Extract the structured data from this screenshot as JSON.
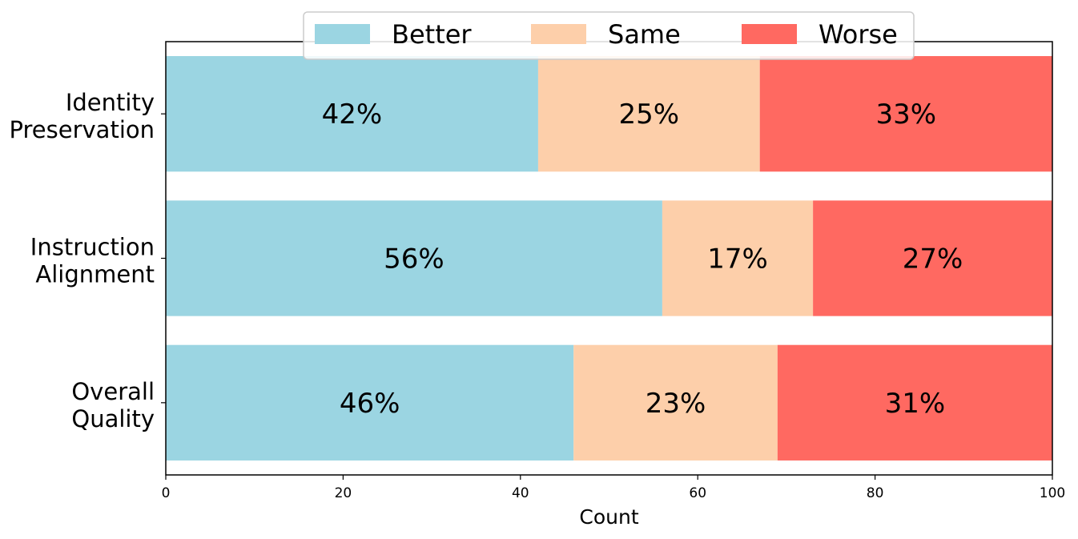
{
  "chart_data": {
    "type": "bar",
    "orientation": "horizontal",
    "stacked": true,
    "categories": [
      "Identity Preservation",
      "Instruction Alignment",
      "Overall Quality"
    ],
    "category_label_lines": [
      [
        "Identity",
        "Preservation"
      ],
      [
        "Instruction",
        "Alignment"
      ],
      [
        "Overall",
        "Quality"
      ]
    ],
    "series": [
      {
        "name": "Better",
        "color": "#9bd5e2",
        "values": [
          42,
          56,
          46
        ],
        "labels": [
          "42%",
          "56%",
          "46%"
        ]
      },
      {
        "name": "Same",
        "color": "#fdcfaa",
        "values": [
          25,
          17,
          23
        ],
        "labels": [
          "25%",
          "17%",
          "23%"
        ]
      },
      {
        "name": "Worse",
        "color": "#ff6961",
        "values": [
          33,
          27,
          31
        ],
        "labels": [
          "33%",
          "27%",
          "31%"
        ]
      }
    ],
    "title": "",
    "xlabel": "Count",
    "ylabel": "",
    "xlim": [
      0,
      100
    ],
    "xticks": [
      0,
      20,
      40,
      60,
      80,
      100
    ],
    "xtick_labels": [
      "0",
      "20",
      "40",
      "60",
      "80",
      "100"
    ],
    "grid": false,
    "legend_position": "top-center"
  }
}
